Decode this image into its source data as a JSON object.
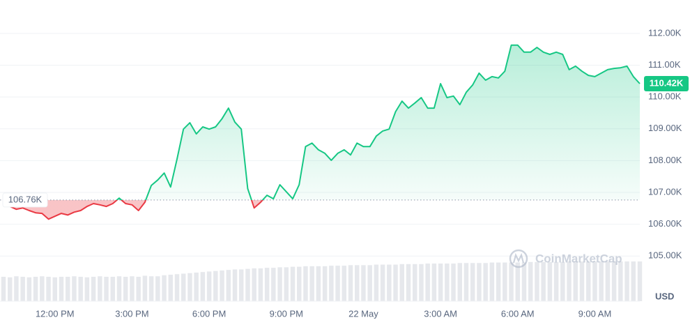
{
  "chart_data": {
    "type": "line",
    "categories": [
      null,
      null,
      null,
      null,
      null,
      null,
      null,
      null,
      "12:00 PM",
      null,
      null,
      null,
      null,
      null,
      null,
      null,
      null,
      null,
      null,
      null,
      "3:00 PM",
      null,
      null,
      null,
      null,
      null,
      null,
      null,
      null,
      null,
      null,
      null,
      "6:00 PM",
      null,
      null,
      null,
      null,
      null,
      null,
      null,
      null,
      null,
      null,
      null,
      "9:00 PM",
      null,
      null,
      null,
      null,
      null,
      null,
      null,
      null,
      null,
      null,
      null,
      "22 May",
      null,
      null,
      null,
      null,
      null,
      null,
      null,
      null,
      null,
      null,
      null,
      "3:00 AM",
      null,
      null,
      null,
      null,
      null,
      null,
      null,
      null,
      null,
      null,
      null,
      "6:00 AM",
      null,
      null,
      null,
      null,
      null,
      null,
      null,
      null,
      null,
      null,
      null,
      "9:00 AM",
      null,
      null,
      null,
      null,
      null,
      null,
      null
    ],
    "series": [
      {
        "color": "#16c784",
        "below_color": "#ea3943",
        "values": [
          106730,
          106560,
          106470,
          106510,
          106430,
          106360,
          106340,
          106160,
          106250,
          106340,
          106290,
          106380,
          106430,
          106560,
          106650,
          106610,
          106560,
          106650,
          106820,
          106650,
          106610,
          106430,
          106690,
          107220,
          107390,
          107610,
          107170,
          108050,
          108990,
          109190,
          108840,
          109060,
          108990,
          109060,
          109320,
          109650,
          109210,
          108990,
          107120,
          106510,
          106690,
          106910,
          106800,
          107240,
          107020,
          106800,
          107240,
          108440,
          108550,
          108340,
          108230,
          108010,
          108230,
          108340,
          108180,
          108550,
          108440,
          108440,
          108770,
          108930,
          108990,
          109540,
          109870,
          109650,
          109810,
          109980,
          109650,
          109650,
          110420,
          109980,
          110030,
          109760,
          110150,
          110380,
          110750,
          110530,
          110640,
          110600,
          110810,
          111630,
          111630,
          111410,
          111410,
          111560,
          111410,
          111340,
          111410,
          111340,
          110860,
          110970,
          110810,
          110680,
          110640,
          110750,
          110860,
          110900,
          110920,
          110970,
          110640,
          110420
        ]
      }
    ],
    "last_label": "110.42K",
    "baseline": 106760,
    "baseline_label": "106.76K",
    "volume": {
      "color": "#e6e8ec",
      "ylim": [
        0,
        100
      ],
      "values": [
        46,
        45,
        47,
        46,
        45,
        46,
        47,
        46,
        45,
        46,
        46,
        47,
        46,
        45,
        46,
        47,
        46,
        46,
        47,
        46,
        47,
        46,
        48,
        47,
        47,
        49,
        50,
        51,
        52,
        53,
        54,
        55,
        56,
        57,
        58,
        59,
        60,
        60,
        61,
        62,
        62,
        63,
        63,
        64,
        64,
        65,
        65,
        66,
        66,
        66,
        66,
        67,
        67,
        67,
        68,
        68,
        68,
        68,
        69,
        69,
        69,
        69,
        70,
        70,
        70,
        70,
        71,
        71,
        71,
        71,
        71,
        72,
        72,
        72,
        72,
        72,
        73,
        73,
        73,
        73,
        73,
        73,
        74,
        74,
        74,
        74,
        74,
        74,
        75,
        75,
        75,
        75,
        75,
        75,
        75,
        75,
        75,
        75,
        75,
        75
      ]
    },
    "ylim": [
      103580,
      113050
    ],
    "yticks": [
      {
        "value": 105000,
        "label": "105.00K"
      },
      {
        "value": 106000,
        "label": "106.00K"
      },
      {
        "value": 107000,
        "label": "107.00K"
      },
      {
        "value": 108000,
        "label": "108.00K"
      },
      {
        "value": 109000,
        "label": "109.00K"
      },
      {
        "value": 110000,
        "label": "110.00K"
      },
      {
        "value": 111000,
        "label": "111.00K"
      },
      {
        "value": 112000,
        "label": "112.00K"
      }
    ],
    "grid": true,
    "y_unit": "USD",
    "watermark": "CoinMarketCap"
  }
}
